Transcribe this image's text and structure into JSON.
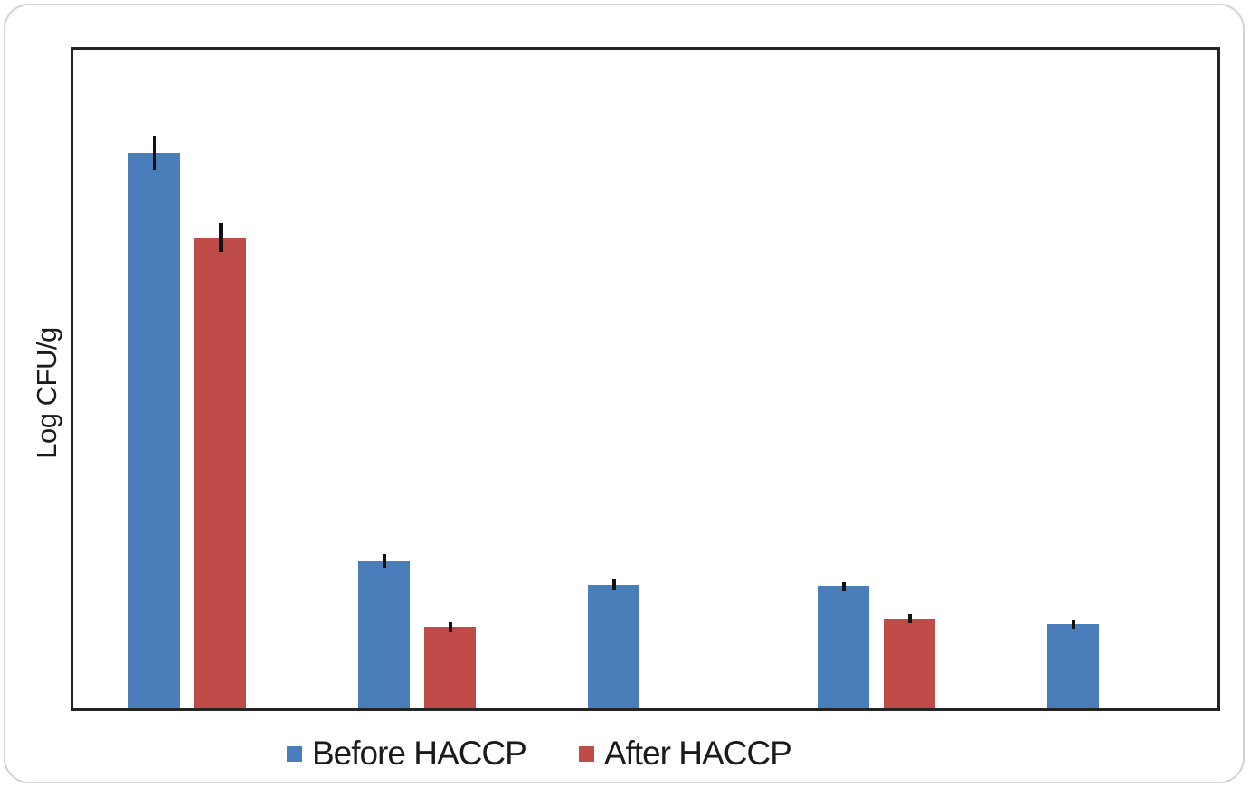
{
  "window": {
    "background": "#ffffff",
    "frame_border_color": "#d2d2d2"
  },
  "chart_data": {
    "type": "bar",
    "title": "",
    "xlabel": "",
    "ylabel": "Log CFU/g",
    "ylim": [
      0,
      7.35
    ],
    "y_tick_labels": [],
    "categories": [
      "",
      "",
      "",
      "",
      ""
    ],
    "grid": false,
    "legend_position": "bottom",
    "error_bars": true,
    "axis_color": "#242424",
    "error_bar_color": "#111111",
    "series": [
      {
        "name": "Before HACCP",
        "color": "#4A7EBB",
        "values": [
          6.2,
          1.64,
          1.38,
          1.36,
          0.94
        ],
        "errors": [
          0.19,
          0.08,
          0.06,
          0.05,
          0.05
        ]
      },
      {
        "name": "After HACCP",
        "color": "#BE4B48",
        "values": [
          5.25,
          0.91,
          null,
          1.0,
          null
        ],
        "errors": [
          0.16,
          0.06,
          null,
          0.05,
          null
        ]
      }
    ]
  }
}
